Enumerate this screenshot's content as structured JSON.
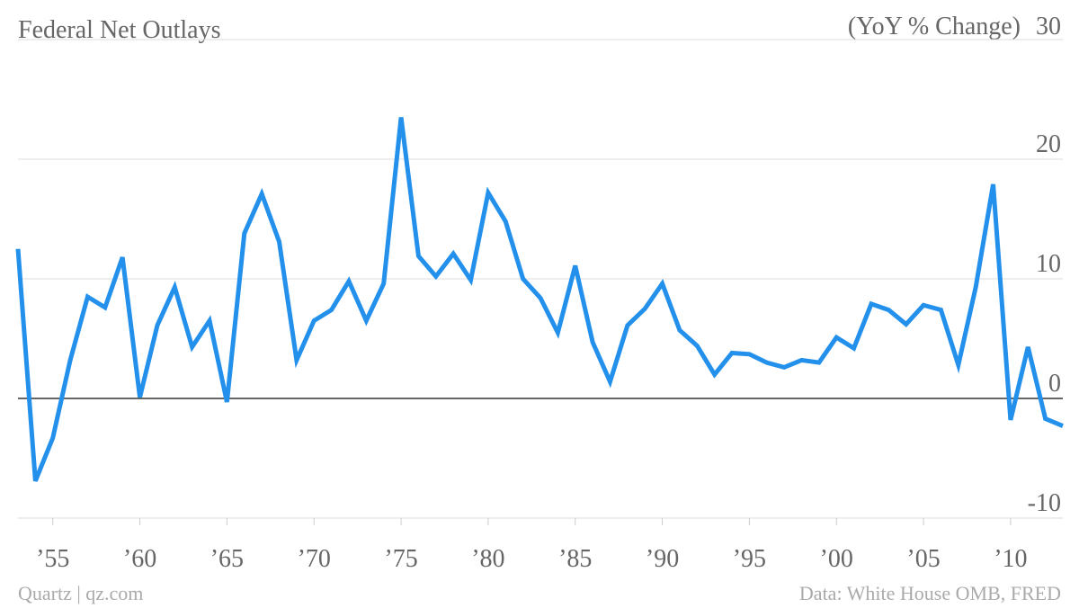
{
  "chart_data": {
    "type": "line",
    "title": "Federal Net Outlays",
    "y_label": "(YoY % Change)",
    "source": "Data: White House OMB, FRED",
    "credit": "Quartz | qz.com",
    "x": [
      1953,
      1954,
      1955,
      1956,
      1957,
      1958,
      1959,
      1960,
      1961,
      1962,
      1963,
      1964,
      1965,
      1966,
      1967,
      1968,
      1969,
      1970,
      1971,
      1972,
      1973,
      1974,
      1975,
      1976,
      1977,
      1978,
      1979,
      1980,
      1981,
      1982,
      1983,
      1984,
      1985,
      1986,
      1987,
      1988,
      1989,
      1990,
      1991,
      1992,
      1993,
      1994,
      1995,
      1996,
      1997,
      1998,
      1999,
      2000,
      2001,
      2002,
      2003,
      2004,
      2005,
      2006,
      2007,
      2008,
      2009,
      2010,
      2011,
      2012,
      2013
    ],
    "series": [
      {
        "color": "#2390ec",
        "values": [
          12.5,
          -6.9,
          -3.3,
          3.2,
          8.5,
          7.6,
          11.8,
          0.1,
          6.1,
          9.3,
          4.3,
          6.5,
          -0.3,
          13.8,
          17.1,
          13.1,
          3.2,
          6.5,
          7.4,
          9.8,
          6.5,
          9.6,
          23.5,
          11.9,
          10.2,
          12.1,
          9.9,
          17.2,
          14.8,
          10.0,
          8.4,
          5.5,
          11.1,
          4.7,
          1.4,
          6.1,
          7.5,
          9.6,
          5.7,
          4.4,
          2.0,
          3.8,
          3.7,
          3.0,
          2.6,
          3.2,
          3.0,
          5.1,
          4.2,
          7.9,
          7.4,
          6.2,
          7.8,
          7.4,
          2.8,
          9.3,
          17.9,
          -1.8,
          4.3,
          -1.7,
          -2.3
        ]
      }
    ],
    "xlim": [
      1953,
      2013
    ],
    "xticks": [
      {
        "value": 1955,
        "label": "’55"
      },
      {
        "value": 1960,
        "label": "’60"
      },
      {
        "value": 1965,
        "label": "’65"
      },
      {
        "value": 1970,
        "label": "’70"
      },
      {
        "value": 1975,
        "label": "’75"
      },
      {
        "value": 1980,
        "label": "’80"
      },
      {
        "value": 1985,
        "label": "’85"
      },
      {
        "value": 1990,
        "label": "’90"
      },
      {
        "value": 1995,
        "label": "’95"
      },
      {
        "value": 2000,
        "label": "’00"
      },
      {
        "value": 2005,
        "label": "’05"
      },
      {
        "value": 2010,
        "label": "’10"
      }
    ],
    "ylim": [
      -10,
      30
    ],
    "yticks": [
      -10,
      0,
      10,
      20,
      30
    ],
    "grid": true
  }
}
